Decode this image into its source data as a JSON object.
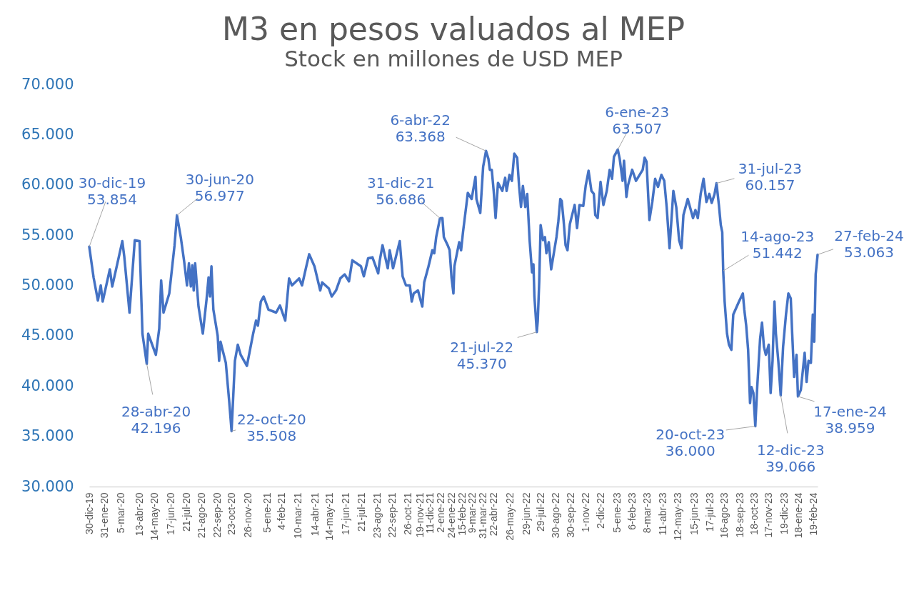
{
  "chart_data": {
    "type": "line",
    "title": "M3 en pesos valuados al MEP",
    "subtitle": "Stock en millones de USD MEP",
    "x": [
      "2019-12-30",
      "2020-01-08",
      "2020-01-17",
      "2020-01-23",
      "2020-01-27",
      "2020-02-11",
      "2020-02-16",
      "2020-03-08",
      "2020-03-12",
      "2020-03-23",
      "2020-04-03",
      "2020-04-13",
      "2020-04-19",
      "2020-04-28",
      "2020-05-01",
      "2020-05-17",
      "2020-05-24",
      "2020-05-28",
      "2020-06-02",
      "2020-06-14",
      "2020-06-25",
      "2020-06-30",
      "2020-07-08",
      "2020-07-15",
      "2020-07-21",
      "2020-07-25",
      "2020-07-29",
      "2020-08-01",
      "2020-08-04",
      "2020-08-07",
      "2020-08-14",
      "2020-08-23",
      "2020-08-31",
      "2020-09-04",
      "2020-09-07",
      "2020-09-10",
      "2020-09-14",
      "2020-09-23",
      "2020-09-26",
      "2020-09-29",
      "2020-10-10",
      "2020-10-17",
      "2020-10-22",
      "2020-10-29",
      "2020-11-04",
      "2020-11-10",
      "2020-11-23",
      "2020-12-06",
      "2020-12-12",
      "2020-12-16",
      "2020-12-22",
      "2020-12-28",
      "2021-01-07",
      "2021-01-23",
      "2021-01-31",
      "2021-02-11",
      "2021-02-19",
      "2021-02-25",
      "2021-03-12",
      "2021-03-18",
      "2021-03-28",
      "2021-04-02",
      "2021-04-13",
      "2021-04-25",
      "2021-04-29",
      "2021-05-13",
      "2021-05-19",
      "2021-05-28",
      "2021-06-06",
      "2021-06-15",
      "2021-06-24",
      "2021-07-01",
      "2021-07-19",
      "2021-07-25",
      "2021-08-03",
      "2021-08-12",
      "2021-08-24",
      "2021-08-27",
      "2021-09-02",
      "2021-09-13",
      "2021-09-17",
      "2021-09-24",
      "2021-10-08",
      "2021-10-14",
      "2021-10-21",
      "2021-10-29",
      "2021-11-02",
      "2021-11-06",
      "2021-11-15",
      "2021-11-24",
      "2021-11-28",
      "2021-12-07",
      "2021-12-15",
      "2021-12-19",
      "2021-12-23",
      "2021-12-31",
      "2022-01-05",
      "2022-01-08",
      "2022-01-16",
      "2022-01-20",
      "2022-01-24",
      "2022-01-28",
      "2022-01-30",
      "2022-02-09",
      "2022-02-13",
      "2022-02-17",
      "2022-02-24",
      "2022-02-27",
      "2022-03-07",
      "2022-03-15",
      "2022-03-17",
      "2022-03-25",
      "2022-03-31",
      "2022-04-06",
      "2022-04-11",
      "2022-04-14",
      "2022-04-18",
      "2022-04-22",
      "2022-04-26",
      "2022-05-01",
      "2022-05-10",
      "2022-05-16",
      "2022-05-19",
      "2022-05-25",
      "2022-05-30",
      "2022-06-04",
      "2022-06-10",
      "2022-06-14",
      "2022-06-18",
      "2022-06-22",
      "2022-06-27",
      "2022-07-01",
      "2022-07-06",
      "2022-07-11",
      "2022-07-14",
      "2022-07-16",
      "2022-07-21",
      "2022-07-23",
      "2022-07-26",
      "2022-07-29",
      "2022-08-03",
      "2022-08-07",
      "2022-08-10",
      "2022-08-15",
      "2022-08-20",
      "2022-08-31",
      "2022-09-04",
      "2022-09-08",
      "2022-09-11",
      "2022-09-15",
      "2022-09-19",
      "2022-09-23",
      "2022-09-28",
      "2022-10-08",
      "2022-10-13",
      "2022-10-18",
      "2022-10-26",
      "2022-10-31",
      "2022-11-06",
      "2022-11-12",
      "2022-11-17",
      "2022-11-20",
      "2022-11-25",
      "2022-12-01",
      "2022-12-07",
      "2022-12-14",
      "2022-12-20",
      "2022-12-25",
      "2022-12-29",
      "2023-01-06",
      "2023-01-10",
      "2023-01-16",
      "2023-01-19",
      "2023-01-24",
      "2023-01-27",
      "2023-02-05",
      "2023-02-13",
      "2023-02-27",
      "2023-03-03",
      "2023-03-07",
      "2023-03-13",
      "2023-03-19",
      "2023-03-25",
      "2023-03-31",
      "2023-04-07",
      "2023-04-13",
      "2023-04-18",
      "2023-04-24",
      "2023-05-02",
      "2023-05-08",
      "2023-05-14",
      "2023-05-19",
      "2023-05-23",
      "2023-06-01",
      "2023-06-12",
      "2023-06-17",
      "2023-06-22",
      "2023-06-28",
      "2023-07-04",
      "2023-07-10",
      "2023-07-16",
      "2023-07-21",
      "2023-07-27",
      "2023-07-31",
      "2023-08-05",
      "2023-08-09",
      "2023-08-12",
      "2023-08-14",
      "2023-08-17",
      "2023-08-22",
      "2023-08-26",
      "2023-08-31",
      "2023-09-04",
      "2023-09-16",
      "2023-09-24",
      "2023-09-27",
      "2023-10-01",
      "2023-10-05",
      "2023-10-09",
      "2023-10-12",
      "2023-10-16",
      "2023-10-20",
      "2023-10-24",
      "2023-10-30",
      "2023-11-03",
      "2023-11-07",
      "2023-11-11",
      "2023-11-17",
      "2023-11-21",
      "2023-11-25",
      "2023-11-29",
      "2023-12-02",
      "2023-12-07",
      "2023-12-12",
      "2023-12-17",
      "2023-12-23",
      "2023-12-28",
      "2024-01-02",
      "2024-01-05",
      "2024-01-09",
      "2024-01-14",
      "2024-01-17",
      "2024-01-23",
      "2024-01-31",
      "2024-02-04",
      "2024-02-08",
      "2024-02-13",
      "2024-02-17",
      "2024-02-20",
      "2024-02-23",
      "2024-02-27"
    ],
    "series": [
      {
        "color": "#4472c4",
        "values": [
          53854,
          50800,
          48500,
          50000,
          48400,
          51600,
          49900,
          54400,
          52900,
          47300,
          54500,
          54400,
          45200,
          42196,
          45200,
          43100,
          45700,
          50500,
          47300,
          49200,
          54000,
          56977,
          54800,
          52400,
          50000,
          52200,
          49900,
          52000,
          49500,
          52200,
          47900,
          45200,
          48700,
          50800,
          48900,
          51900,
          47600,
          45000,
          42500,
          44400,
          42300,
          38500,
          35508,
          42500,
          44100,
          43100,
          42000,
          45200,
          46500,
          46000,
          48400,
          48900,
          47600,
          47300,
          48000,
          46500,
          50700,
          50000,
          50700,
          50000,
          52100,
          53100,
          51900,
          49500,
          50300,
          49700,
          48900,
          49500,
          50700,
          51100,
          50400,
          52500,
          51900,
          50900,
          52700,
          52800,
          51200,
          52400,
          54000,
          51700,
          53500,
          51700,
          54400,
          50900,
          50000,
          50000,
          48400,
          49200,
          49500,
          47900,
          50300,
          51900,
          53500,
          53200,
          54800,
          56686,
          56700,
          54800,
          54000,
          53500,
          50800,
          49200,
          51900,
          54300,
          53500,
          55300,
          58000,
          59200,
          58600,
          60800,
          58600,
          57200,
          61800,
          63368,
          62600,
          61500,
          61500,
          59400,
          56700,
          60200,
          59400,
          60700,
          59400,
          61000,
          60400,
          63100,
          62700,
          59900,
          57800,
          59900,
          57800,
          59100,
          54500,
          51300,
          52100,
          48900,
          45370,
          46500,
          50300,
          56000,
          54500,
          54800,
          53200,
          54300,
          51600,
          54800,
          56400,
          58600,
          58400,
          56400,
          54000,
          53500,
          56100,
          58000,
          55700,
          58000,
          57900,
          59900,
          61400,
          59400,
          59100,
          57000,
          56700,
          60300,
          58000,
          59400,
          61500,
          60600,
          62800,
          63507,
          62600,
          60400,
          62400,
          58800,
          59900,
          61500,
          60400,
          61500,
          62700,
          62300,
          56500,
          58300,
          60600,
          59800,
          61000,
          60400,
          57800,
          53700,
          59400,
          57800,
          54500,
          53700,
          57000,
          58600,
          56700,
          57500,
          56700,
          59100,
          60600,
          58300,
          59100,
          58200,
          59100,
          60157,
          58000,
          56000,
          55300,
          51442,
          48400,
          45200,
          44100,
          43600,
          47100,
          48400,
          49200,
          47600,
          46000,
          43600,
          38300,
          39900,
          39300,
          36000,
          39900,
          44700,
          46300,
          43900,
          43100,
          44100,
          39300,
          42500,
          48400,
          45200,
          42500,
          39066,
          43900,
          47100,
          49200,
          48700,
          45200,
          40900,
          43100,
          38959,
          39600,
          43300,
          40400,
          42500,
          42300,
          47100,
          44400,
          51100,
          53063
        ]
      }
    ],
    "xlim": [
      "2019-12-30",
      "2024-02-27"
    ],
    "xticks": [
      {
        "value": "2019-12-30",
        "label": "30-dic-19"
      },
      {
        "value": "2020-01-31",
        "label": "31-ene-20"
      },
      {
        "value": "2020-03-05",
        "label": "5-mar-20"
      },
      {
        "value": "2020-04-13",
        "label": "13-abr-20"
      },
      {
        "value": "2020-05-14",
        "label": "14-may-20"
      },
      {
        "value": "2020-06-17",
        "label": "17-jun-20"
      },
      {
        "value": "2020-07-21",
        "label": "21-jul-20"
      },
      {
        "value": "2020-08-21",
        "label": "21-ago-20"
      },
      {
        "value": "2020-09-22",
        "label": "22-sep-20"
      },
      {
        "value": "2020-10-23",
        "label": "23-oct-20"
      },
      {
        "value": "2020-11-26",
        "label": "26-nov-20"
      },
      {
        "value": "2021-01-05",
        "label": "5-ene-21"
      },
      {
        "value": "2021-02-04",
        "label": "4-feb-21"
      },
      {
        "value": "2021-03-10",
        "label": "10-mar-21"
      },
      {
        "value": "2021-04-14",
        "label": "14-abr-21"
      },
      {
        "value": "2021-05-14",
        "label": "14-may-21"
      },
      {
        "value": "2021-06-17",
        "label": "17-jun-21"
      },
      {
        "value": "2021-07-21",
        "label": "21-jul-21"
      },
      {
        "value": "2021-08-23",
        "label": "23-ago-21"
      },
      {
        "value": "2021-09-22",
        "label": "22-sep-21"
      },
      {
        "value": "2021-10-26",
        "label": "26-oct-21"
      },
      {
        "value": "2021-11-19",
        "label": "19-nov-21"
      },
      {
        "value": "2021-12-11",
        "label": "11-dic-21"
      },
      {
        "value": "2022-01-02",
        "label": "2-ene-22"
      },
      {
        "value": "2022-01-24",
        "label": "24-ene-22"
      },
      {
        "value": "2022-02-15",
        "label": "15-feb-22"
      },
      {
        "value": "2022-03-09",
        "label": "9-mar-22"
      },
      {
        "value": "2022-03-31",
        "label": "31-mar-22"
      },
      {
        "value": "2022-04-22",
        "label": "22-abr-22"
      },
      {
        "value": "2022-05-26",
        "label": "26-may-22"
      },
      {
        "value": "2022-06-29",
        "label": "29-jun-22"
      },
      {
        "value": "2022-07-29",
        "label": "29-jul-22"
      },
      {
        "value": "2022-08-30",
        "label": "30-ago-22"
      },
      {
        "value": "2022-09-30",
        "label": "30-sep-22"
      },
      {
        "value": "2022-11-01",
        "label": "1-nov-22"
      },
      {
        "value": "2022-12-02",
        "label": "2-dic-22"
      },
      {
        "value": "2023-01-05",
        "label": "5-ene-23"
      },
      {
        "value": "2023-02-06",
        "label": "6-feb-23"
      },
      {
        "value": "2023-03-08",
        "label": "8-mar-23"
      },
      {
        "value": "2023-04-11",
        "label": "11-abr-23"
      },
      {
        "value": "2023-05-12",
        "label": "12-may-23"
      },
      {
        "value": "2023-06-15",
        "label": "15-jun-23"
      },
      {
        "value": "2023-07-17",
        "label": "17-jul-23"
      },
      {
        "value": "2023-08-16",
        "label": "16-ago-23"
      },
      {
        "value": "2023-09-18",
        "label": "18-sep-23"
      },
      {
        "value": "2023-10-18",
        "label": "18-oct-23"
      },
      {
        "value": "2023-11-17",
        "label": "17-nov-23"
      },
      {
        "value": "2023-12-19",
        "label": "19-dic-23"
      },
      {
        "value": "2024-01-18",
        "label": "18-ene-24"
      },
      {
        "value": "2024-02-19",
        "label": "19-feb-24"
      }
    ],
    "ylim": [
      30000,
      70000
    ],
    "yticks": [
      {
        "value": 30000,
        "label": "30.000"
      },
      {
        "value": 35000,
        "label": "35.000"
      },
      {
        "value": 40000,
        "label": "40.000"
      },
      {
        "value": 45000,
        "label": "45.000"
      },
      {
        "value": 50000,
        "label": "50.000"
      },
      {
        "value": 55000,
        "label": "55.000"
      },
      {
        "value": 60000,
        "label": "60.000"
      },
      {
        "value": 65000,
        "label": "65.000"
      },
      {
        "value": 70000,
        "label": "70.000"
      }
    ],
    "grid": false,
    "line_style": "solid",
    "annotations": [
      {
        "text": "30-dic-19\n53.854",
        "x": "2019-12-30",
        "y": 53854
      },
      {
        "text": "28-abr-20\n42.196",
        "x": "2020-04-28",
        "y": 42196
      },
      {
        "text": "30-jun-20\n56.977",
        "x": "2020-06-30",
        "y": 56977
      },
      {
        "text": "22-oct-20\n35.508",
        "x": "2020-10-22",
        "y": 35508
      },
      {
        "text": "31-dic-21\n56.686",
        "x": "2021-12-31",
        "y": 56686
      },
      {
        "text": "6-abr-22\n63.368",
        "x": "2022-04-06",
        "y": 63368
      },
      {
        "text": "21-jul-22\n45.370",
        "x": "2022-07-21",
        "y": 45370
      },
      {
        "text": "6-ene-23\n63.507",
        "x": "2023-01-06",
        "y": 63507
      },
      {
        "text": "31-jul-23\n60.157",
        "x": "2023-07-31",
        "y": 60157
      },
      {
        "text": "14-ago-23\n51.442",
        "x": "2023-08-14",
        "y": 51442
      },
      {
        "text": "20-oct-23\n36.000",
        "x": "2023-10-20",
        "y": 36000
      },
      {
        "text": "12-dic-23\n39.066",
        "x": "2023-12-12",
        "y": 39066
      },
      {
        "text": "17-ene-24\n38.959",
        "x": "2024-01-17",
        "y": 38959
      },
      {
        "text": "27-feb-24\n53.063",
        "x": "2024-02-27",
        "y": 53063
      }
    ]
  }
}
